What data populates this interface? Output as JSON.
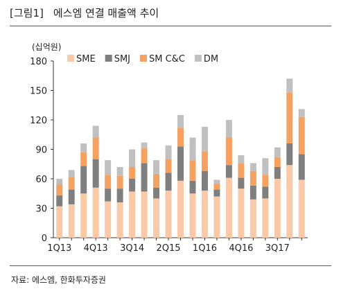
{
  "figure": {
    "label": "[그림1]",
    "title": "에스엠 연결 매출액 추이",
    "unit": "(십억원)",
    "source": "자료: 에스엠, 한화투자증권"
  },
  "chart_data": {
    "type": "bar",
    "stacked": true,
    "title": "에스엠 연결 매출액 추이",
    "ylabel": "(십억원)",
    "ylim": [
      0,
      180
    ],
    "yticks": [
      0,
      30,
      60,
      90,
      120,
      150,
      180
    ],
    "grid": false,
    "legend_position": "top",
    "categories": [
      "1Q13",
      "2Q13",
      "3Q13",
      "4Q13",
      "1Q14",
      "2Q14",
      "3Q14",
      "4Q14",
      "1Q15",
      "2Q15",
      "3Q15",
      "4Q15",
      "1Q16",
      "2Q16",
      "3Q16",
      "4Q16",
      "1Q17",
      "2Q17",
      "3Q17",
      "4Q17",
      "1Q18"
    ],
    "xtick_labels": [
      "1Q13",
      "",
      "",
      "4Q13",
      "",
      "",
      "3Q14",
      "",
      "",
      "2Q15",
      "",
      "",
      "1Q16",
      "",
      "",
      "4Q16",
      "",
      "",
      "3Q17",
      "",
      ""
    ],
    "series": [
      {
        "name": "SME",
        "color": "#f9c9a8",
        "values": [
          32,
          34,
          45,
          51,
          37,
          36,
          47,
          47,
          40,
          48,
          58,
          45,
          48,
          42,
          61,
          50,
          39,
          40,
          60,
          74,
          59
        ]
      },
      {
        "name": "SMJ",
        "color": "#7f7f7f",
        "values": [
          11,
          15,
          28,
          29,
          13,
          14,
          13,
          29,
          11,
          18,
          35,
          13,
          20,
          7,
          13,
          11,
          14,
          12,
          12,
          22,
          26
        ]
      },
      {
        "name": "SM C&C",
        "color": "#f4a161",
        "values": [
          11,
          13,
          14,
          22,
          14,
          13,
          12,
          15,
          14,
          14,
          19,
          21,
          20,
          6,
          28,
          15,
          15,
          12,
          10,
          52,
          38
        ]
      },
      {
        "name": "DM",
        "color": "#c0c0c0",
        "values": [
          6,
          7,
          9,
          12,
          15,
          9,
          18,
          6,
          14,
          14,
          13,
          23,
          25,
          4,
          18,
          8,
          8,
          17,
          10,
          14,
          8
        ]
      }
    ]
  }
}
